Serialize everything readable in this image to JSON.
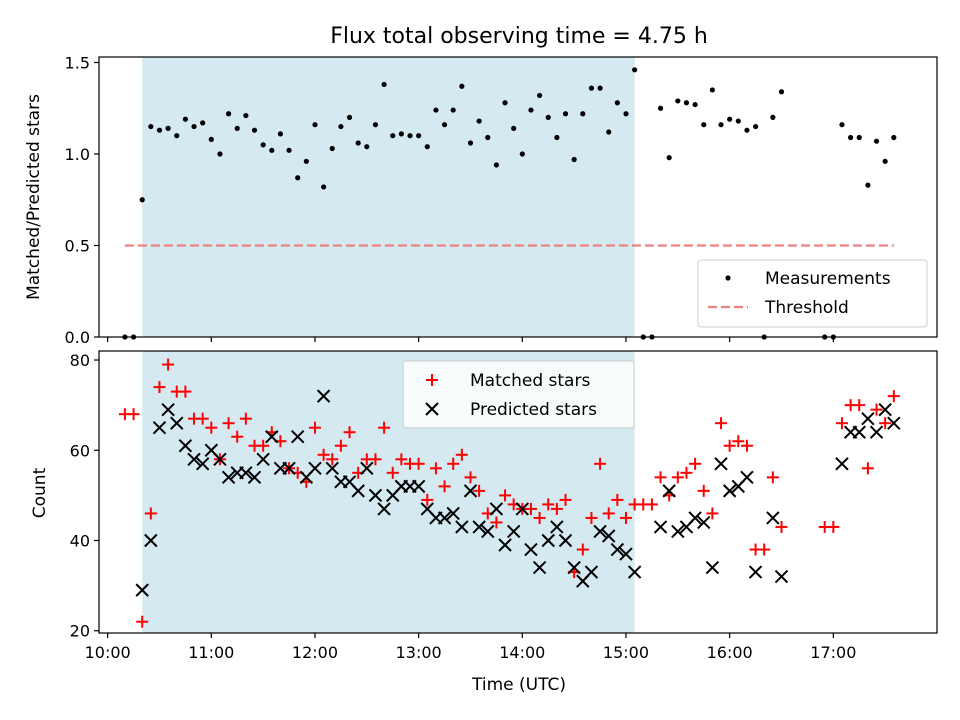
{
  "chart_data": [
    {
      "type": "scatter",
      "title": "Flux total observing time = 4.75 h",
      "ylabel": "Matched/Predicted stars",
      "xlabel": "",
      "xlim": [
        "09:55",
        "18:00"
      ],
      "ylim": [
        0,
        1.53
      ],
      "x_ticks": [
        "10:00",
        "11:00",
        "12:00",
        "13:00",
        "14:00",
        "15:00",
        "16:00",
        "17:00"
      ],
      "y_ticks": [
        "0.0",
        "0.5",
        "1.0",
        "1.5"
      ],
      "highlight_span": [
        "10:20",
        "15:05"
      ],
      "highlight_color": "#d4eaf0",
      "legend_position": "lower right",
      "grid": false,
      "series": [
        {
          "name": "Measurements",
          "marker": "dot",
          "color": "#000000",
          "points": [
            [
              "10:10",
              0.0
            ],
            [
              "10:15",
              0.0
            ],
            [
              "10:20",
              0.75
            ],
            [
              "10:25",
              1.15
            ],
            [
              "10:30",
              1.13
            ],
            [
              "10:35",
              1.14
            ],
            [
              "10:40",
              1.1
            ],
            [
              "10:45",
              1.19
            ],
            [
              "10:50",
              1.15
            ],
            [
              "10:55",
              1.17
            ],
            [
              "11:00",
              1.08
            ],
            [
              "11:05",
              1.0
            ],
            [
              "11:10",
              1.22
            ],
            [
              "11:15",
              1.14
            ],
            [
              "11:20",
              1.21
            ],
            [
              "11:25",
              1.13
            ],
            [
              "11:30",
              1.05
            ],
            [
              "11:35",
              1.02
            ],
            [
              "11:40",
              1.11
            ],
            [
              "11:45",
              1.02
            ],
            [
              "11:50",
              0.87
            ],
            [
              "11:55",
              0.96
            ],
            [
              "12:00",
              1.16
            ],
            [
              "12:05",
              0.82
            ],
            [
              "12:10",
              1.03
            ],
            [
              "12:15",
              1.15
            ],
            [
              "12:20",
              1.2
            ],
            [
              "12:25",
              1.06
            ],
            [
              "12:30",
              1.04
            ],
            [
              "12:35",
              1.16
            ],
            [
              "12:40",
              1.38
            ],
            [
              "12:45",
              1.1
            ],
            [
              "12:50",
              1.11
            ],
            [
              "12:55",
              1.1
            ],
            [
              "13:00",
              1.1
            ],
            [
              "13:05",
              1.04
            ],
            [
              "13:10",
              1.24
            ],
            [
              "13:15",
              1.16
            ],
            [
              "13:20",
              1.24
            ],
            [
              "13:25",
              1.37
            ],
            [
              "13:30",
              1.06
            ],
            [
              "13:35",
              1.18
            ],
            [
              "13:40",
              1.09
            ],
            [
              "13:45",
              0.94
            ],
            [
              "13:50",
              1.28
            ],
            [
              "13:55",
              1.14
            ],
            [
              "14:00",
              1.0
            ],
            [
              "14:05",
              1.24
            ],
            [
              "14:10",
              1.32
            ],
            [
              "14:15",
              1.2
            ],
            [
              "14:20",
              1.09
            ],
            [
              "14:25",
              1.22
            ],
            [
              "14:30",
              0.97
            ],
            [
              "14:35",
              1.22
            ],
            [
              "14:40",
              1.36
            ],
            [
              "14:45",
              1.36
            ],
            [
              "14:50",
              1.12
            ],
            [
              "14:55",
              1.28
            ],
            [
              "15:00",
              1.22
            ],
            [
              "15:05",
              1.46
            ],
            [
              "15:10",
              0.0
            ],
            [
              "15:15",
              0.0
            ],
            [
              "15:20",
              1.25
            ],
            [
              "15:25",
              0.98
            ],
            [
              "15:30",
              1.29
            ],
            [
              "15:35",
              1.28
            ],
            [
              "15:40",
              1.27
            ],
            [
              "15:45",
              1.16
            ],
            [
              "15:50",
              1.35
            ],
            [
              "15:55",
              1.16
            ],
            [
              "16:00",
              1.19
            ],
            [
              "16:05",
              1.18
            ],
            [
              "16:10",
              1.13
            ],
            [
              "16:15",
              1.15
            ],
            [
              "16:20",
              0.0
            ],
            [
              "16:25",
              1.2
            ],
            [
              "16:30",
              1.34
            ],
            [
              "16:55",
              0.0
            ],
            [
              "17:00",
              0.0
            ],
            [
              "17:05",
              1.16
            ],
            [
              "17:10",
              1.09
            ],
            [
              "17:15",
              1.09
            ],
            [
              "17:20",
              0.83
            ],
            [
              "17:25",
              1.07
            ],
            [
              "17:30",
              0.96
            ],
            [
              "17:35",
              1.09
            ]
          ]
        },
        {
          "name": "Threshold",
          "line_style": "dashed",
          "color": "#f08080",
          "points": [
            [
              "10:10",
              0.5
            ],
            [
              "17:35",
              0.5
            ]
          ]
        }
      ]
    },
    {
      "type": "scatter",
      "title": "",
      "ylabel": "Count",
      "xlabel": "Time (UTC)",
      "xlim": [
        "09:55",
        "18:00"
      ],
      "ylim": [
        19.5,
        82
      ],
      "x_ticks": [
        "10:00",
        "11:00",
        "12:00",
        "13:00",
        "14:00",
        "15:00",
        "16:00",
        "17:00"
      ],
      "y_ticks": [
        "20",
        "40",
        "60",
        "80"
      ],
      "highlight_span": [
        "10:20",
        "15:05"
      ],
      "highlight_color": "#d4eaf0",
      "legend_position": "upper center",
      "grid": false,
      "series": [
        {
          "name": "Matched stars",
          "marker": "plus",
          "color": "#ff0000",
          "points": [
            [
              "10:10",
              68
            ],
            [
              "10:15",
              68
            ],
            [
              "10:20",
              22
            ],
            [
              "10:25",
              46
            ],
            [
              "10:30",
              74
            ],
            [
              "10:35",
              79
            ],
            [
              "10:40",
              73
            ],
            [
              "10:45",
              73
            ],
            [
              "10:50",
              67
            ],
            [
              "10:55",
              67
            ],
            [
              "11:00",
              65
            ],
            [
              "11:05",
              58
            ],
            [
              "11:10",
              66
            ],
            [
              "11:15",
              63
            ],
            [
              "11:20",
              67
            ],
            [
              "11:25",
              61
            ],
            [
              "11:30",
              61
            ],
            [
              "11:35",
              64
            ],
            [
              "11:40",
              62
            ],
            [
              "11:45",
              56
            ],
            [
              "11:50",
              55
            ],
            [
              "11:55",
              53
            ],
            [
              "12:00",
              65
            ],
            [
              "12:05",
              59
            ],
            [
              "12:10",
              58
            ],
            [
              "12:15",
              61
            ],
            [
              "12:20",
              64
            ],
            [
              "12:25",
              55
            ],
            [
              "12:30",
              58
            ],
            [
              "12:35",
              58
            ],
            [
              "12:40",
              65
            ],
            [
              "12:45",
              55
            ],
            [
              "12:50",
              58
            ],
            [
              "12:55",
              57
            ],
            [
              "13:00",
              57
            ],
            [
              "13:05",
              49
            ],
            [
              "13:10",
              56
            ],
            [
              "13:15",
              52
            ],
            [
              "13:20",
              57
            ],
            [
              "13:25",
              59
            ],
            [
              "13:30",
              54
            ],
            [
              "13:35",
              51
            ],
            [
              "13:40",
              46
            ],
            [
              "13:45",
              44
            ],
            [
              "13:50",
              50
            ],
            [
              "13:55",
              48
            ],
            [
              "14:00",
              47
            ],
            [
              "14:05",
              47
            ],
            [
              "14:10",
              45
            ],
            [
              "14:15",
              48
            ],
            [
              "14:20",
              47
            ],
            [
              "14:25",
              49
            ],
            [
              "14:30",
              33
            ],
            [
              "14:35",
              38
            ],
            [
              "14:40",
              45
            ],
            [
              "14:45",
              57
            ],
            [
              "14:50",
              46
            ],
            [
              "14:55",
              49
            ],
            [
              "15:00",
              45
            ],
            [
              "15:05",
              48
            ],
            [
              "15:10",
              48
            ],
            [
              "15:15",
              48
            ],
            [
              "15:20",
              54
            ],
            [
              "15:25",
              50
            ],
            [
              "15:30",
              54
            ],
            [
              "15:35",
              55
            ],
            [
              "15:40",
              57
            ],
            [
              "15:45",
              51
            ],
            [
              "15:50",
              46
            ],
            [
              "15:55",
              66
            ],
            [
              "16:00",
              61
            ],
            [
              "16:05",
              62
            ],
            [
              "16:10",
              61
            ],
            [
              "16:15",
              38
            ],
            [
              "16:20",
              38
            ],
            [
              "16:25",
              54
            ],
            [
              "16:30",
              43
            ],
            [
              "16:55",
              43
            ],
            [
              "17:00",
              43
            ],
            [
              "17:05",
              66
            ],
            [
              "17:10",
              70
            ],
            [
              "17:15",
              70
            ],
            [
              "17:20",
              56
            ],
            [
              "17:25",
              69
            ],
            [
              "17:30",
              66
            ],
            [
              "17:35",
              72
            ]
          ]
        },
        {
          "name": "Predicted stars",
          "marker": "x",
          "color": "#000000",
          "points": [
            [
              "10:20",
              29
            ],
            [
              "10:25",
              40
            ],
            [
              "10:30",
              65
            ],
            [
              "10:35",
              69
            ],
            [
              "10:40",
              66
            ],
            [
              "10:45",
              61
            ],
            [
              "10:50",
              58
            ],
            [
              "10:55",
              57
            ],
            [
              "11:00",
              60
            ],
            [
              "11:05",
              58
            ],
            [
              "11:10",
              54
            ],
            [
              "11:15",
              55
            ],
            [
              "11:20",
              55
            ],
            [
              "11:25",
              54
            ],
            [
              "11:30",
              58
            ],
            [
              "11:35",
              63
            ],
            [
              "11:40",
              56
            ],
            [
              "11:45",
              56
            ],
            [
              "11:50",
              63
            ],
            [
              "11:55",
              54
            ],
            [
              "12:00",
              56
            ],
            [
              "12:05",
              72
            ],
            [
              "12:10",
              56
            ],
            [
              "12:15",
              53
            ],
            [
              "12:20",
              53
            ],
            [
              "12:25",
              51
            ],
            [
              "12:30",
              56
            ],
            [
              "12:35",
              50
            ],
            [
              "12:40",
              47
            ],
            [
              "12:45",
              50
            ],
            [
              "12:50",
              52
            ],
            [
              "12:55",
              52
            ],
            [
              "13:00",
              52
            ],
            [
              "13:05",
              47
            ],
            [
              "13:10",
              45
            ],
            [
              "13:15",
              45
            ],
            [
              "13:20",
              46
            ],
            [
              "13:25",
              43
            ],
            [
              "13:30",
              51
            ],
            [
              "13:35",
              43
            ],
            [
              "13:40",
              42
            ],
            [
              "13:45",
              47
            ],
            [
              "13:50",
              39
            ],
            [
              "13:55",
              42
            ],
            [
              "14:00",
              47
            ],
            [
              "14:05",
              38
            ],
            [
              "14:10",
              34
            ],
            [
              "14:15",
              40
            ],
            [
              "14:20",
              43
            ],
            [
              "14:25",
              40
            ],
            [
              "14:30",
              34
            ],
            [
              "14:35",
              31
            ],
            [
              "14:40",
              33
            ],
            [
              "14:45",
              42
            ],
            [
              "14:50",
              41
            ],
            [
              "14:55",
              38
            ],
            [
              "15:00",
              37
            ],
            [
              "15:05",
              33
            ],
            [
              "15:20",
              43
            ],
            [
              "15:25",
              51
            ],
            [
              "15:30",
              42
            ],
            [
              "15:35",
              43
            ],
            [
              "15:40",
              45
            ],
            [
              "15:45",
              44
            ],
            [
              "15:50",
              34
            ],
            [
              "15:55",
              57
            ],
            [
              "16:00",
              51
            ],
            [
              "16:05",
              52
            ],
            [
              "16:10",
              54
            ],
            [
              "16:15",
              33
            ],
            [
              "16:25",
              45
            ],
            [
              "16:30",
              32
            ],
            [
              "17:05",
              57
            ],
            [
              "17:10",
              64
            ],
            [
              "17:15",
              64
            ],
            [
              "17:20",
              67
            ],
            [
              "17:25",
              64
            ],
            [
              "17:30",
              69
            ],
            [
              "17:35",
              66
            ]
          ]
        }
      ]
    }
  ]
}
